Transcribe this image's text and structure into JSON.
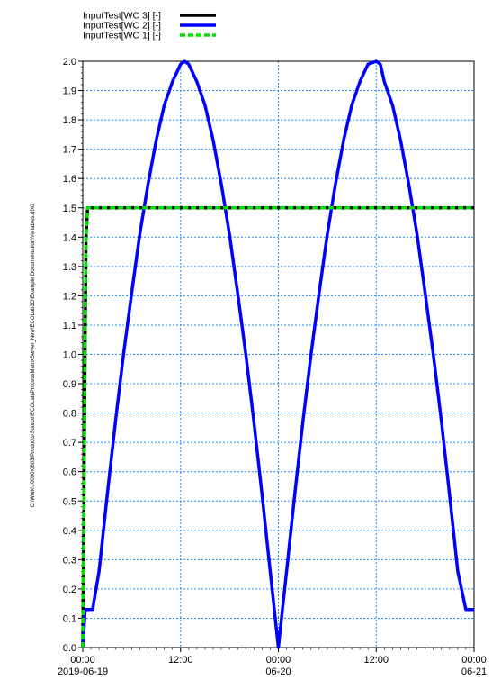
{
  "side_label": "C:\\Work\\10090\\0603\\Products\\Source\\ECOLab\\ProcessMatrixServer_New\\ECOLab3D\\Example Documentation\\Variables.dfx0",
  "chart_data": {
    "type": "line",
    "title": "",
    "xlabel": "",
    "ylabel": "",
    "x_range_hours": [
      0,
      48
    ],
    "ylim": [
      0,
      2
    ],
    "yticks": [
      0.0,
      0.1,
      0.2,
      0.3,
      0.4,
      0.5,
      0.6,
      0.7,
      0.8,
      0.9,
      1.0,
      1.1,
      1.2,
      1.3,
      1.4,
      1.5,
      1.6,
      1.7,
      1.8,
      1.9,
      2.0
    ],
    "xticks": [
      {
        "hour": 0,
        "time": "00:00",
        "date": "2019-06-19"
      },
      {
        "hour": 12,
        "time": "12:00",
        "date": ""
      },
      {
        "hour": 24,
        "time": "00:00",
        "date": "06-20"
      },
      {
        "hour": 36,
        "time": "12:00",
        "date": ""
      },
      {
        "hour": 48,
        "time": "00:00",
        "date": "06-21"
      }
    ],
    "grid": true,
    "legend": "top-left",
    "series": [
      {
        "name": "InputTest[WC 3] [-]",
        "color": "#000000",
        "style": "solid",
        "x": [
          0,
          0.4,
          0.6,
          1.0,
          48
        ],
        "y": [
          0,
          1.4,
          1.5,
          1.5,
          1.5
        ]
      },
      {
        "name": "InputTest[WC 2] [-]",
        "color": "#0000ff",
        "style": "solid",
        "x": [
          0,
          0.3,
          0.6,
          1.2,
          2,
          3,
          4,
          5,
          6,
          7,
          8,
          9,
          10,
          11,
          12,
          12.5,
          13,
          14,
          15,
          16,
          17,
          18,
          19,
          20,
          21,
          22,
          23,
          24,
          24.5,
          25,
          26,
          27,
          28,
          29,
          30,
          31,
          32,
          33,
          34,
          35,
          36,
          36.5,
          37,
          38,
          39,
          40,
          41,
          42,
          43,
          44,
          45,
          46,
          47,
          48
        ],
        "y": [
          0.0,
          0.13,
          0.13,
          0.13,
          0.26,
          0.52,
          0.77,
          1.0,
          1.21,
          1.41,
          1.58,
          1.73,
          1.85,
          1.93,
          1.99,
          2.0,
          1.99,
          1.93,
          1.85,
          1.73,
          1.58,
          1.41,
          1.21,
          1.0,
          0.77,
          0.52,
          0.26,
          0.0,
          0.13,
          0.26,
          0.52,
          0.77,
          1.0,
          1.21,
          1.41,
          1.58,
          1.73,
          1.85,
          1.93,
          1.99,
          2.0,
          1.99,
          1.93,
          1.85,
          1.73,
          1.58,
          1.41,
          1.21,
          1.0,
          0.77,
          0.52,
          0.26,
          0.13,
          0.13
        ]
      },
      {
        "name": "InputTest[WC 1] [-]",
        "color": "#00e000",
        "style": "dashed",
        "x": [
          0,
          0.4,
          0.6,
          1.0,
          48
        ],
        "y": [
          0,
          1.4,
          1.5,
          1.5,
          1.5
        ]
      }
    ]
  }
}
